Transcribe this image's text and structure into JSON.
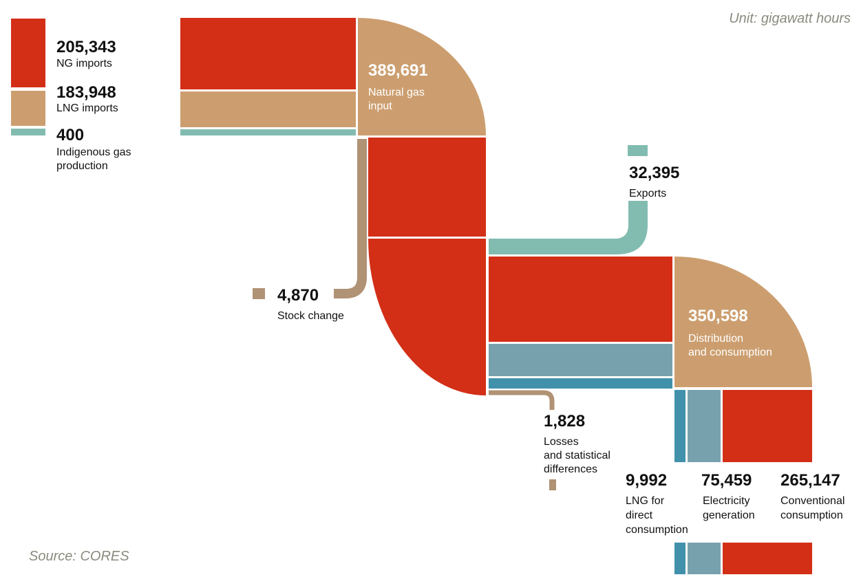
{
  "unit_note": "Unit: gigawatt hours",
  "source_note": "Source: CORES",
  "colors": {
    "ng": "#d32f17",
    "lng": "#cc9e6f",
    "indigenous": "#82bcb0",
    "stock": "#b09274",
    "electricity": "#78a1ae",
    "lng_direct": "#4191ab"
  },
  "inputs": {
    "ng_imports": {
      "value": "205,343",
      "label": "NG imports"
    },
    "lng_imports": {
      "value": "183,948",
      "label": "LNG imports"
    },
    "indigenous": {
      "value": "400",
      "label_1": "Indigenous gas",
      "label_2": "production"
    }
  },
  "natural_gas_input": {
    "value": "389,691",
    "label_1": "Natural gas",
    "label_2": "input"
  },
  "stock_change": {
    "value": "4,870",
    "label": "Stock change"
  },
  "exports": {
    "value": "32,395",
    "label": "Exports"
  },
  "losses": {
    "value": "1,828",
    "label_1": "Losses",
    "label_2": "and statistical",
    "label_3": "differences"
  },
  "distribution": {
    "value": "350,598",
    "label_1": "Distribution",
    "label_2": "and consumption"
  },
  "outputs": {
    "lng_direct": {
      "value": "9,992",
      "label_1": "LNG for",
      "label_2": "direct",
      "label_3": "consumption"
    },
    "electricity": {
      "value": "75,459",
      "label_1": "Electricity",
      "label_2": "generation"
    },
    "conventional": {
      "value": "265,147",
      "label_1": "Conventional",
      "label_2": "consumption"
    }
  }
}
